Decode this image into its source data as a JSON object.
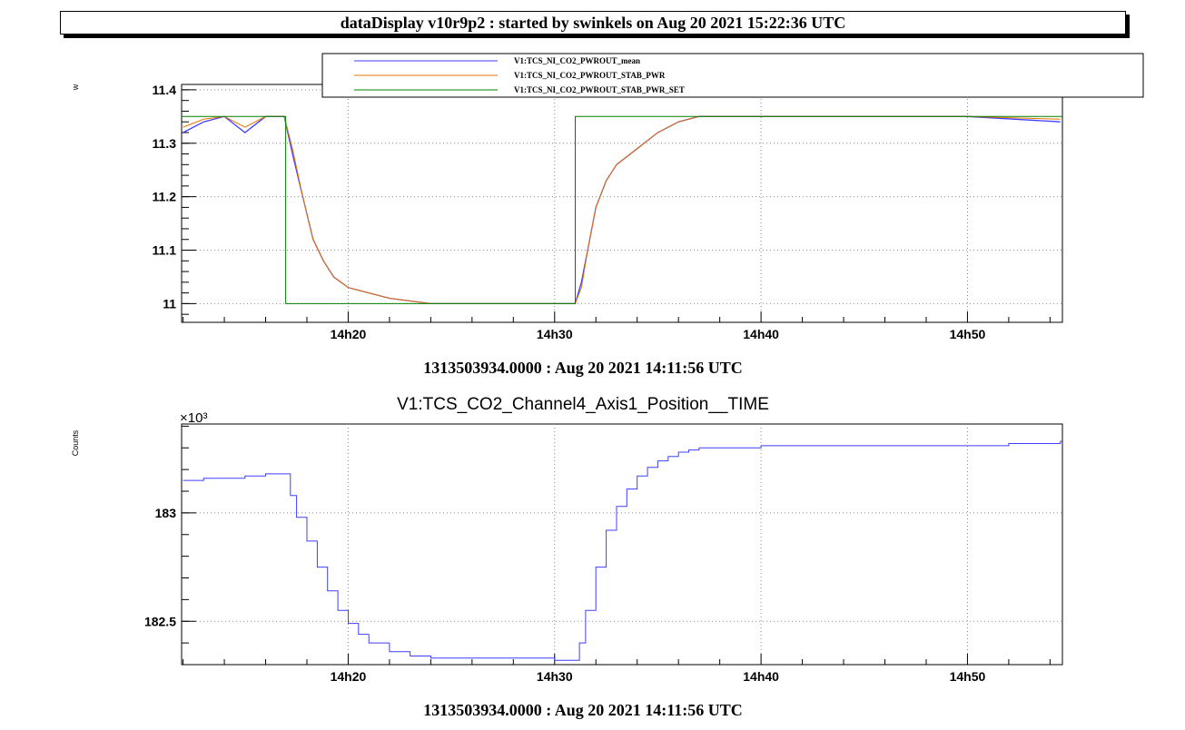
{
  "window": {
    "title": "dataDisplay v10r9p2 : started by swinkels on Aug 20 2021 15:22:36 UTC"
  },
  "colors": {
    "mean": "#3f3fff",
    "stab_pwr": "#e67300",
    "stab_pwr_set": "#008000",
    "position": "#3f3fff"
  },
  "chart_data": [
    {
      "type": "line",
      "title": "",
      "ylabel": "w",
      "xlabel": "1313503934.0000 : Aug 20 2021 14:11:56 UTC",
      "x_unit": "minutes after 14:00 UTC",
      "xlim": [
        11.93,
        54.6
      ],
      "ylim": [
        10.965,
        11.41
      ],
      "xticks": [
        20,
        30,
        40,
        50
      ],
      "xtick_labels": [
        "14h20",
        "14h30",
        "14h40",
        "14h50"
      ],
      "yticks": [
        11,
        11.1,
        11.2,
        11.3,
        11.4
      ],
      "ytick_labels": [
        "11",
        "11.1",
        "11.2",
        "11.3",
        "11.4"
      ],
      "grid": true,
      "legend": {
        "position": "top-right",
        "entries": [
          "V1:TCS_NI_CO2_PWROUT_mean",
          "V1:TCS_NI_CO2_PWROUT_STAB_PWR",
          "V1:TCS_NI_CO2_PWROUT_STAB_PWR_SET"
        ]
      },
      "series": [
        {
          "name": "V1:TCS_NI_CO2_PWROUT_mean",
          "x": [
            12.0,
            13.0,
            14.0,
            15.0,
            16.0,
            16.9,
            17.3,
            17.8,
            18.3,
            18.8,
            19.3,
            20.0,
            21.0,
            22.0,
            24.0,
            27.0,
            30.0,
            31.0,
            31.3,
            31.6,
            32.0,
            32.5,
            33.0,
            34.0,
            35.0,
            36.0,
            37.0,
            40.0,
            45.0,
            50.0,
            54.5
          ],
          "y": [
            11.32,
            11.34,
            11.35,
            11.32,
            11.35,
            11.35,
            11.28,
            11.2,
            11.12,
            11.08,
            11.05,
            11.03,
            11.02,
            11.01,
            11.0,
            11.0,
            11.0,
            11.0,
            11.04,
            11.1,
            11.18,
            11.23,
            11.26,
            11.29,
            11.32,
            11.34,
            11.35,
            11.35,
            11.35,
            11.35,
            11.34
          ]
        },
        {
          "name": "V1:TCS_NI_CO2_PWROUT_STAB_PWR",
          "x": [
            12.0,
            13.0,
            14.0,
            15.0,
            16.0,
            16.9,
            17.3,
            17.8,
            18.3,
            18.8,
            19.3,
            20.0,
            21.0,
            22.0,
            24.0,
            27.0,
            30.0,
            31.0,
            31.3,
            31.6,
            32.0,
            32.5,
            33.0,
            34.0,
            35.0,
            36.0,
            37.0,
            40.0,
            45.0,
            50.0,
            54.5
          ],
          "y": [
            11.33,
            11.345,
            11.35,
            11.33,
            11.35,
            11.35,
            11.29,
            11.2,
            11.12,
            11.08,
            11.05,
            11.03,
            11.02,
            11.01,
            11.0,
            11.0,
            11.0,
            11.0,
            11.03,
            11.1,
            11.18,
            11.23,
            11.26,
            11.29,
            11.32,
            11.34,
            11.35,
            11.35,
            11.35,
            11.35,
            11.345
          ]
        },
        {
          "name": "V1:TCS_NI_CO2_PWROUT_STAB_PWR_SET",
          "x": [
            11.93,
            16.97,
            16.97,
            31.0,
            31.0,
            54.6
          ],
          "y": [
            11.35,
            11.35,
            11.0,
            11.0,
            11.35,
            11.35
          ]
        }
      ]
    },
    {
      "type": "line",
      "title": "V1:TCS_CO2_Channel4_Axis1_Position__TIME",
      "ylabel": "Counts",
      "y_multiplier": "×10³",
      "xlabel": "1313503934.0000 : Aug 20 2021 14:11:56 UTC",
      "x_unit": "minutes after 14:00 UTC",
      "xlim": [
        11.93,
        54.6
      ],
      "ylim": [
        182.3,
        183.41
      ],
      "xticks": [
        20,
        30,
        40,
        50
      ],
      "xtick_labels": [
        "14h20",
        "14h30",
        "14h40",
        "14h50"
      ],
      "yticks": [
        182.5,
        183
      ],
      "ytick_labels": [
        "182.5",
        "183"
      ],
      "grid": true,
      "series": [
        {
          "name": "",
          "x": [
            12.0,
            13.0,
            14.0,
            15.0,
            16.0,
            17.0,
            17.2,
            17.5,
            18.0,
            18.5,
            19.0,
            19.5,
            20.0,
            20.5,
            21.0,
            22.0,
            23.0,
            24.0,
            27.0,
            30.0,
            31.0,
            31.2,
            31.5,
            32.0,
            32.5,
            33.0,
            33.5,
            34.0,
            34.5,
            35.0,
            35.5,
            36.0,
            36.5,
            37.0,
            38.0,
            40.0,
            42.0,
            45.0,
            48.0,
            50.0,
            52.0,
            54.5
          ],
          "y": [
            183.15,
            183.16,
            183.16,
            183.17,
            183.18,
            183.18,
            183.08,
            182.98,
            182.87,
            182.75,
            182.64,
            182.55,
            182.49,
            182.44,
            182.4,
            182.36,
            182.34,
            182.33,
            182.33,
            182.32,
            182.32,
            182.4,
            182.55,
            182.75,
            182.92,
            183.03,
            183.11,
            183.17,
            183.21,
            183.24,
            183.26,
            183.28,
            183.29,
            183.3,
            183.3,
            183.31,
            183.31,
            183.31,
            183.31,
            183.31,
            183.32,
            183.33
          ]
        }
      ]
    }
  ]
}
